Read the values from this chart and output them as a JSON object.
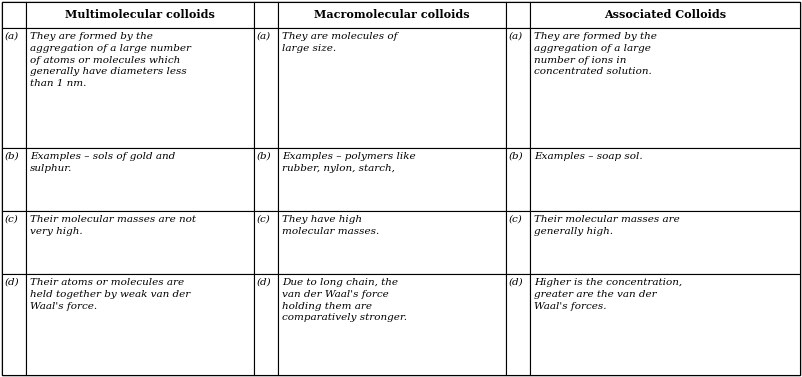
{
  "col_headers": [
    "Multimolecular colloids",
    "Macromolecular colloids",
    "Associated Colloids"
  ],
  "rows": [
    {
      "label": "(a)",
      "c1": "They are formed by the\naggregation of a large number\nof atoms or molecules which\ngenerally have diameters less\nthan 1 nm.",
      "c2": "They are molecules of\nlarge size.",
      "c3": "They are formed by the\naggregation of a large\nnumber of ions in\nconcentrated solution."
    },
    {
      "label": "(b)",
      "c1": "Examples – sols of gold and\nsulphur.",
      "c2": "Examples – polymers like\nrubber, nylon, starch,",
      "c3": "Examples – soap sol."
    },
    {
      "label": "(c)",
      "c1": "Their molecular masses are not\nvery high.",
      "c2": "They have high\nmolecular masses.",
      "c3": "Their molecular masses are\ngenerally high."
    },
    {
      "label": "(d)",
      "c1": "Their atoms or molecules are\nheld together by weak van der\nWaal's force.",
      "c2": "Due to long chain, the\nvan der Waal's force\nholding them are\ncomparatively stronger.",
      "c3": "Higher is the concentration,\ngreater are the van der\nWaal's forces."
    }
  ],
  "header_fontsize": 8.0,
  "cell_fontsize": 7.5,
  "label_fontsize": 7.5,
  "bg_color": "#ffffff",
  "border_color": "#000000",
  "text_color": "#000000",
  "fig_width": 8.02,
  "fig_height": 3.77,
  "dpi": 100
}
